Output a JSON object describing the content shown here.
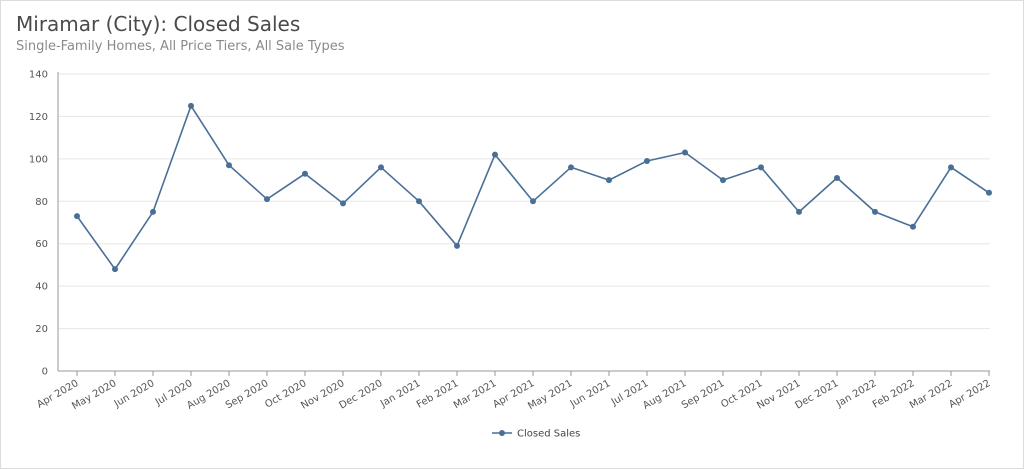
{
  "title": "Miramar (City): Closed Sales",
  "subtitle": "Single-Family Homes, All Price Tiers, All Sale Types",
  "colors": {
    "series": "#4a6f96",
    "grid": "#e6e6e6",
    "axis": "#9a9a9a"
  },
  "chart_data": {
    "type": "line",
    "title": "Miramar (City): Closed Sales",
    "subtitle": "Single-Family Homes, All Price Tiers, All Sale Types",
    "xlabel": "",
    "ylabel": "",
    "ylim": [
      0,
      140
    ],
    "yticks": [
      0,
      20,
      40,
      60,
      80,
      100,
      120,
      140
    ],
    "grid": true,
    "legend_position": "bottom-center",
    "categories": [
      "Apr 2020",
      "May 2020",
      "Jun 2020",
      "Jul 2020",
      "Aug 2020",
      "Sep 2020",
      "Oct 2020",
      "Nov 2020",
      "Dec 2020",
      "Jan 2021",
      "Feb 2021",
      "Mar 2021",
      "Apr 2021",
      "May 2021",
      "Jun 2021",
      "Jul 2021",
      "Aug 2021",
      "Sep 2021",
      "Oct 2021",
      "Nov 2021",
      "Dec 2021",
      "Jan 2022",
      "Feb 2022",
      "Mar 2022",
      "Apr 2022"
    ],
    "series": [
      {
        "name": "Closed Sales",
        "values": [
          73,
          48,
          75,
          125,
          97,
          81,
          93,
          79,
          96,
          80,
          59,
          102,
          80,
          96,
          90,
          99,
          103,
          90,
          96,
          75,
          91,
          75,
          68,
          96,
          84
        ]
      }
    ]
  }
}
